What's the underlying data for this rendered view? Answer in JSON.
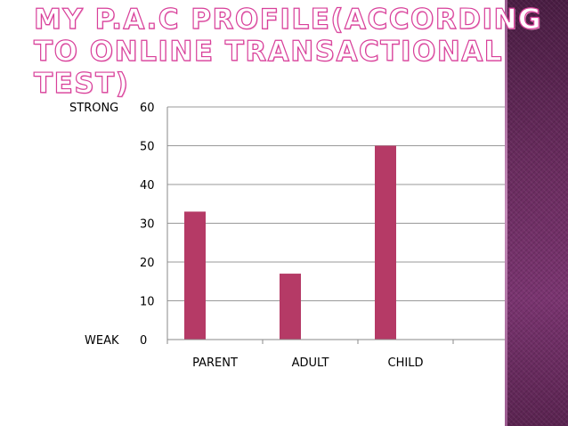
{
  "slide": {
    "title": "MY P.A.C PROFILE(ACCORDING TO ONLINE TRANSACTIONAL TEST)"
  },
  "theme": {
    "bar_color": "#b53a66",
    "band_color": "#5a2350",
    "title_outline_color": "#d8409a"
  },
  "chart_data": {
    "type": "bar",
    "categories": [
      "PARENT",
      "ADULT",
      "CHILD"
    ],
    "values": [
      33,
      17,
      50
    ],
    "ylim": [
      0,
      60
    ],
    "yticks": [
      0,
      10,
      20,
      30,
      40,
      50,
      60
    ],
    "y_side_labels": {
      "top": "STRONG",
      "bottom": "WEAK"
    },
    "grid": true,
    "legend": "none"
  }
}
